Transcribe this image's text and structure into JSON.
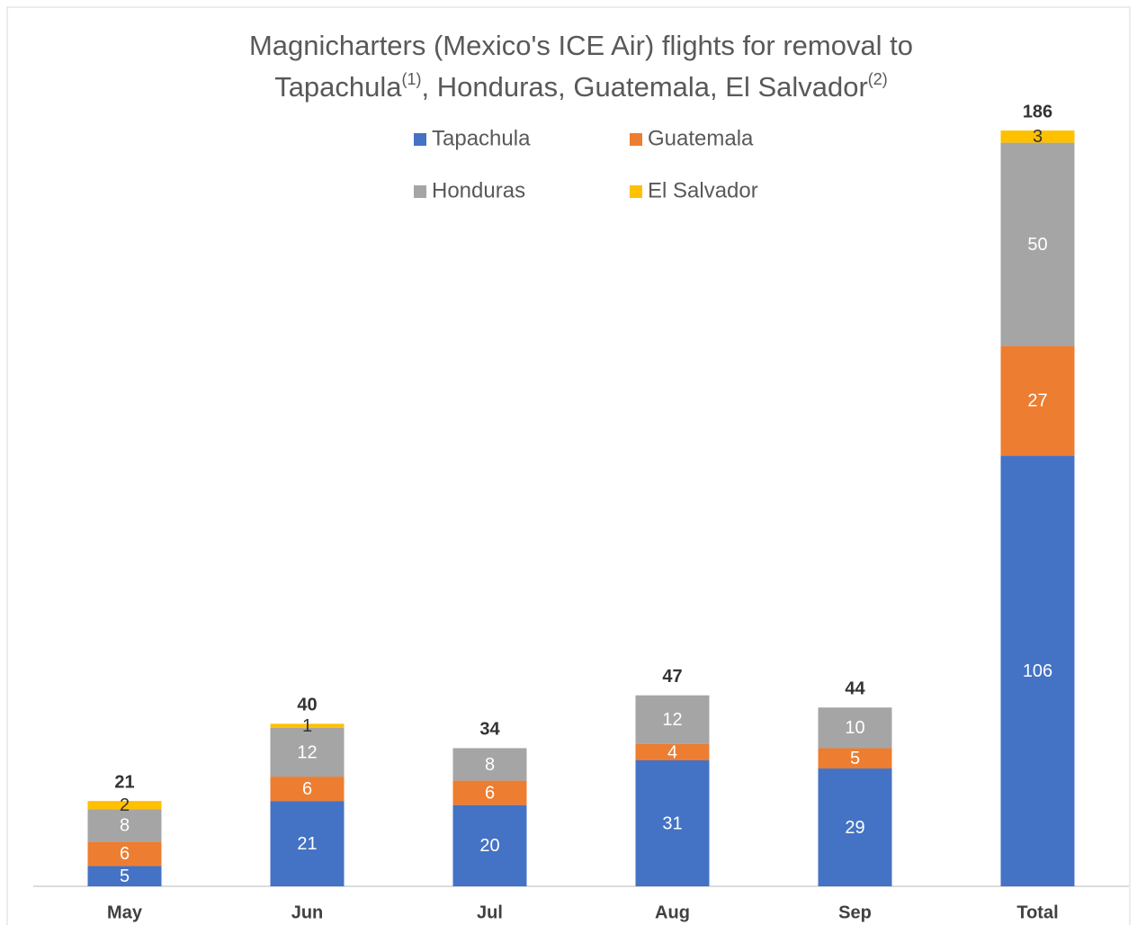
{
  "chart_data": {
    "type": "stacked_bar",
    "title": [
      "Magnicharters (Mexico's ICE Air) flights for removal to",
      "Tapachula",
      "(1)",
      ", Honduras, Guatemala, El Salvador",
      "(2)"
    ],
    "categories": [
      "May",
      "Jun",
      "Jul",
      "Aug",
      "Sep",
      "Total"
    ],
    "series": [
      {
        "name": "Tapachula",
        "color": "#4472c4",
        "label_color": "#ffffff",
        "values": [
          5,
          21,
          20,
          31,
          29,
          106
        ]
      },
      {
        "name": "Guatemala",
        "color": "#ed7d31",
        "label_color": "#ffffff",
        "values": [
          6,
          6,
          6,
          4,
          5,
          27
        ]
      },
      {
        "name": "Honduras",
        "color": "#a5a5a5",
        "label_color": "#ffffff",
        "values": [
          8,
          12,
          8,
          12,
          10,
          50
        ]
      },
      {
        "name": "El Salvador",
        "color": "#ffc000",
        "label_color": "#333333",
        "values": [
          2,
          1,
          null,
          null,
          null,
          3
        ]
      }
    ],
    "totals": [
      21,
      40,
      34,
      47,
      44,
      186
    ],
    "ylim": [
      0,
      190
    ],
    "grid": false
  }
}
